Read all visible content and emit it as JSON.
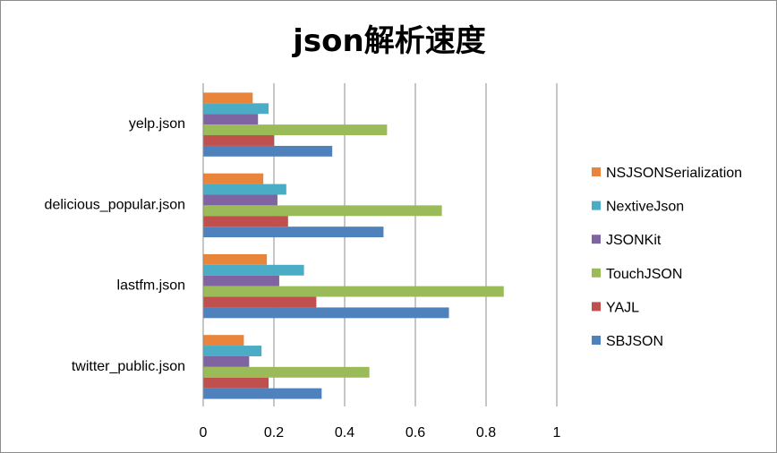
{
  "chart_data": {
    "type": "bar",
    "orientation": "horizontal",
    "title": "json解析速度",
    "categories": [
      "yelp.json",
      "delicious_popular.json",
      "lastfm.json",
      "twitter_public.json"
    ],
    "series": [
      {
        "name": "NSJSONSerialization",
        "color": "#E8853A",
        "values": [
          0.14,
          0.17,
          0.18,
          0.115
        ]
      },
      {
        "name": "NextiveJson",
        "color": "#4BACC6",
        "values": [
          0.185,
          0.235,
          0.285,
          0.165
        ]
      },
      {
        "name": "JSONKit",
        "color": "#8064A2",
        "values": [
          0.155,
          0.21,
          0.215,
          0.13
        ]
      },
      {
        "name": "TouchJSON",
        "color": "#9BBB59",
        "values": [
          0.52,
          0.675,
          0.85,
          0.47
        ]
      },
      {
        "name": "YAJL",
        "color": "#C0504D",
        "values": [
          0.2,
          0.24,
          0.32,
          0.185
        ]
      },
      {
        "name": "SBJSON",
        "color": "#4F81BD",
        "values": [
          0.365,
          0.51,
          0.695,
          0.335
        ]
      }
    ],
    "xlim": [
      0,
      1
    ],
    "xticks": [
      "0",
      "0.2",
      "0.4",
      "0.6",
      "0.8",
      "1"
    ],
    "xtick_values": [
      0,
      0.2,
      0.4,
      0.6,
      0.8,
      1
    ],
    "grid": "vertical-major",
    "legend": "right"
  }
}
